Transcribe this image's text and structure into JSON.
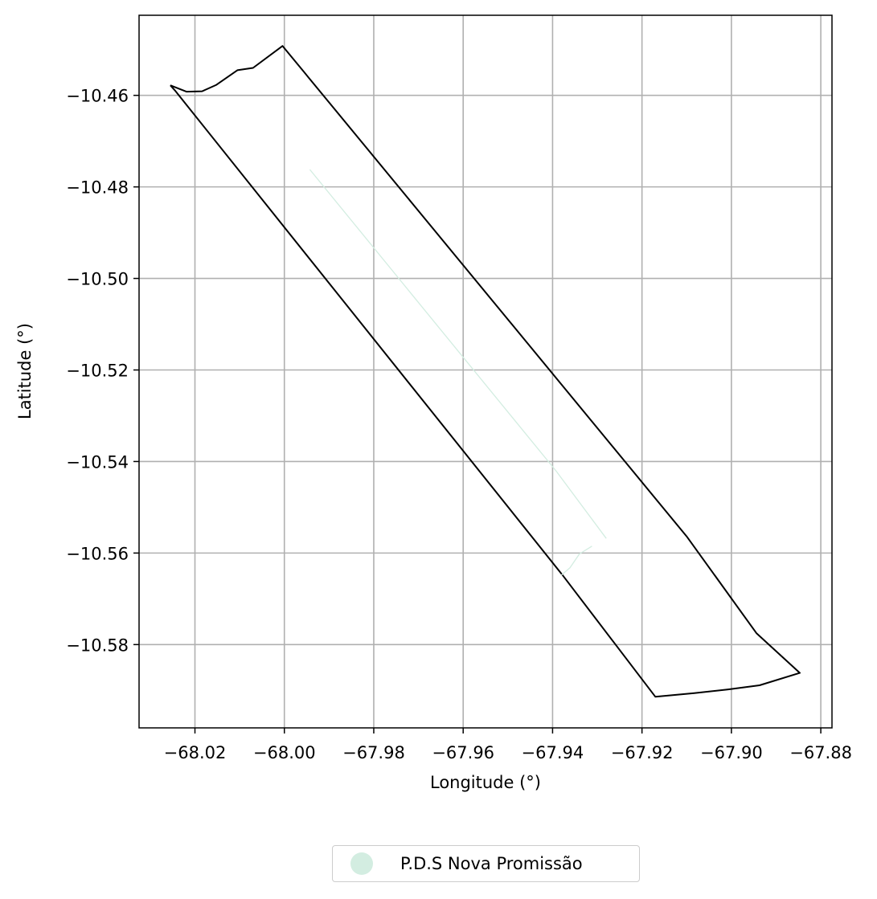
{
  "chart_data": {
    "type": "map",
    "xlabel": "Longitude (°)",
    "ylabel": "Latitude (°)",
    "xlim": [
      -68.0325,
      -67.8775
    ],
    "ylim": [
      -10.5982,
      -10.4425
    ],
    "xticks": [
      -68.02,
      -68.0,
      -67.98,
      -67.96,
      -67.94,
      -67.92,
      -67.9,
      -67.88
    ],
    "yticks": [
      -10.46,
      -10.48,
      -10.5,
      -10.52,
      -10.54,
      -10.56,
      -10.58
    ],
    "xtick_labels": [
      "−68.02",
      "−68.00",
      "−67.98",
      "−67.96",
      "−67.94",
      "−67.92",
      "−67.90",
      "−67.88"
    ],
    "ytick_labels": [
      "−10.46",
      "−10.48",
      "−10.50",
      "−10.52",
      "−10.54",
      "−10.56",
      "−10.58"
    ],
    "grid": true,
    "boundary": {
      "color": "#000000",
      "points": [
        [
          -68.0255,
          -10.4578
        ],
        [
          -68.0219,
          -10.4592
        ],
        [
          -68.0184,
          -10.4591
        ],
        [
          -68.0152,
          -10.4577
        ],
        [
          -68.0105,
          -10.4545
        ],
        [
          -68.007,
          -10.454
        ],
        [
          -68.0004,
          -10.4492
        ],
        [
          -67.9099,
          -10.5565
        ],
        [
          -67.8944,
          -10.5775
        ],
        [
          -67.8847,
          -10.5862
        ],
        [
          -67.8937,
          -10.5889
        ],
        [
          -67.9007,
          -10.5898
        ],
        [
          -67.9083,
          -10.5906
        ],
        [
          -67.917,
          -10.5914
        ],
        [
          -67.9378,
          -10.5648
        ],
        [
          -68.0245,
          -10.4589
        ],
        [
          -68.0255,
          -10.4578
        ]
      ]
    },
    "series": [
      {
        "name": "P.D.S Nova Promissão",
        "color": "#d3ede1",
        "paths": [
          [
            [
              -67.9943,
              -10.4762
            ],
            [
              -67.9392,
              -10.5421
            ],
            [
              -67.928,
              -10.5568
            ]
          ],
          [
            [
              -67.938,
              -10.5648
            ],
            [
              -67.9361,
              -10.5632
            ],
            [
              -67.934,
              -10.5602
            ],
            [
              -67.9312,
              -10.5585
            ]
          ]
        ]
      }
    ],
    "legend": {
      "placement": "bottom-center"
    }
  }
}
